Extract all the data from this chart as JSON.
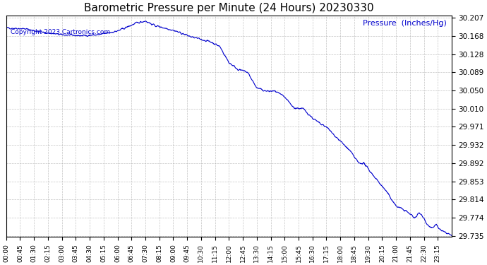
{
  "title": "Barometric Pressure per Minute (24 Hours) 20230330",
  "ylabel": "Pressure  (Inches/Hg)",
  "copyright_text": "Copyright 2023 Cartronics.com",
  "line_color": "#0000cc",
  "background_color": "#ffffff",
  "grid_color": "#aaaaaa",
  "title_color": "#000000",
  "ylabel_color": "#0000cc",
  "copyright_color": "#0000cc",
  "ylim": [
    29.735,
    30.207
  ],
  "yticks": [
    30.207,
    30.168,
    30.128,
    30.089,
    30.05,
    30.01,
    29.971,
    29.932,
    29.892,
    29.853,
    29.814,
    29.774,
    29.735
  ],
  "xtick_labels": [
    "00:00",
    "00:45",
    "01:30",
    "02:15",
    "03:00",
    "03:45",
    "04:30",
    "05:15",
    "06:00",
    "06:45",
    "07:30",
    "08:15",
    "09:00",
    "09:45",
    "10:30",
    "11:15",
    "12:00",
    "12:45",
    "13:30",
    "14:15",
    "15:00",
    "15:45",
    "16:30",
    "17:15",
    "18:00",
    "18:45",
    "19:30",
    "20:15",
    "21:00",
    "21:45",
    "22:30",
    "23:15"
  ]
}
